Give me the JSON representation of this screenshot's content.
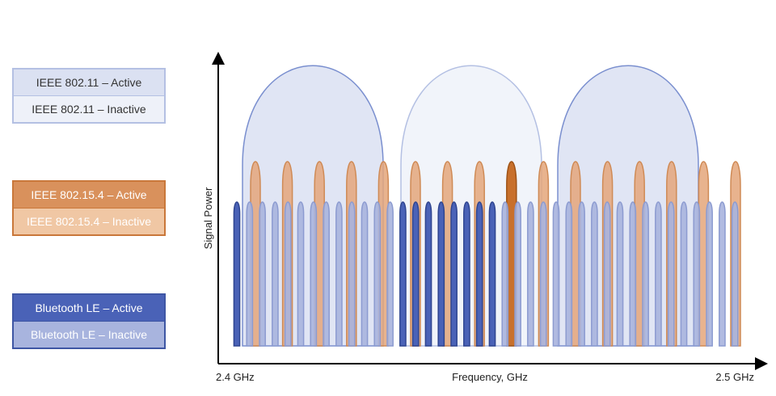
{
  "legend": {
    "wifi_active": "IEEE 802.11 – Active",
    "wifi_inactive": "IEEE 802.11 – Inactive",
    "zigbee_active": "IEEE 802.15.4 – Active",
    "zigbee_inactive": "IEEE 802.15.4 – Inactive",
    "ble_active": "Bluetooth LE – Active",
    "ble_inactive": "Bluetooth LE – Inactive"
  },
  "axes": {
    "y_label": "Signal Power",
    "x_label": "Frequency, GHz",
    "x_start": "2.4 GHz",
    "x_end": "2.5 GHz"
  },
  "colors": {
    "wifi_active_fill": "#dbe1f2",
    "wifi_active_stroke": "#7a8fcf",
    "wifi_inactive_fill": "#eef1f9",
    "wifi_inactive_stroke": "#b4c0e3",
    "zigbee_active": "#c8702c",
    "zigbee_inactive": "#e4a67a",
    "ble_active": "#4a62b7",
    "ble_inactive": "#a8b4de"
  },
  "chart_data": {
    "type": "diagram",
    "wifi_channels": [
      {
        "state": "active"
      },
      {
        "state": "inactive"
      },
      {
        "state": "active"
      }
    ],
    "zigbee_channels": [
      "inactive",
      "inactive",
      "inactive",
      "inactive",
      "inactive",
      "inactive",
      "inactive",
      "inactive",
      "active",
      "inactive",
      "inactive",
      "inactive",
      "inactive",
      "inactive",
      "inactive",
      "inactive"
    ],
    "ble_channels": [
      "active",
      "inactive",
      "inactive",
      "inactive",
      "inactive",
      "inactive",
      "inactive",
      "inactive",
      "inactive",
      "inactive",
      "inactive",
      "inactive",
      "inactive",
      "active",
      "active",
      "active",
      "active",
      "active",
      "active",
      "active",
      "active",
      "inactive",
      "inactive",
      "inactive",
      "inactive",
      "inactive",
      "inactive",
      "inactive",
      "inactive",
      "inactive",
      "inactive",
      "inactive",
      "inactive",
      "inactive",
      "inactive",
      "inactive",
      "inactive",
      "inactive",
      "inactive",
      "inactive"
    ]
  }
}
